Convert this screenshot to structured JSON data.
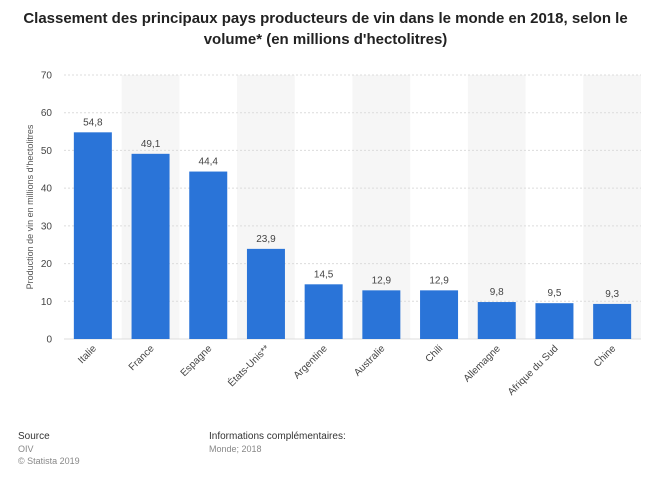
{
  "chart_data": {
    "type": "bar",
    "title": "Classement des principaux pays producteurs de vin dans le monde en 2018, selon le volume* (en millions d'hectolitres)",
    "ylabel": "Production de vin en millions d'hectolitres",
    "xlabel": "",
    "ylim": [
      0,
      70
    ],
    "yticks": [
      0,
      10,
      20,
      30,
      40,
      50,
      60,
      70
    ],
    "grid": true,
    "categories": [
      "Italie",
      "France",
      "Espagne",
      "États-Unis**",
      "Argentine",
      "Australie",
      "Chili",
      "Allemagne",
      "Afrique du Sud",
      "Chine"
    ],
    "values": [
      54.8,
      49.1,
      44.4,
      23.9,
      14.5,
      12.9,
      12.9,
      9.8,
      9.5,
      9.3
    ],
    "value_labels": [
      "54,8",
      "49,1",
      "44,4",
      "23,9",
      "14,5",
      "12,9",
      "12,9",
      "9,8",
      "9,5",
      "9,3"
    ],
    "bar_color": "#2a74d8"
  },
  "footer": {
    "source_heading": "Source",
    "source_name": "OIV",
    "copyright": "© Statista 2019",
    "info_heading": "Informations complémentaires:",
    "info_text": "Monde; 2018"
  }
}
